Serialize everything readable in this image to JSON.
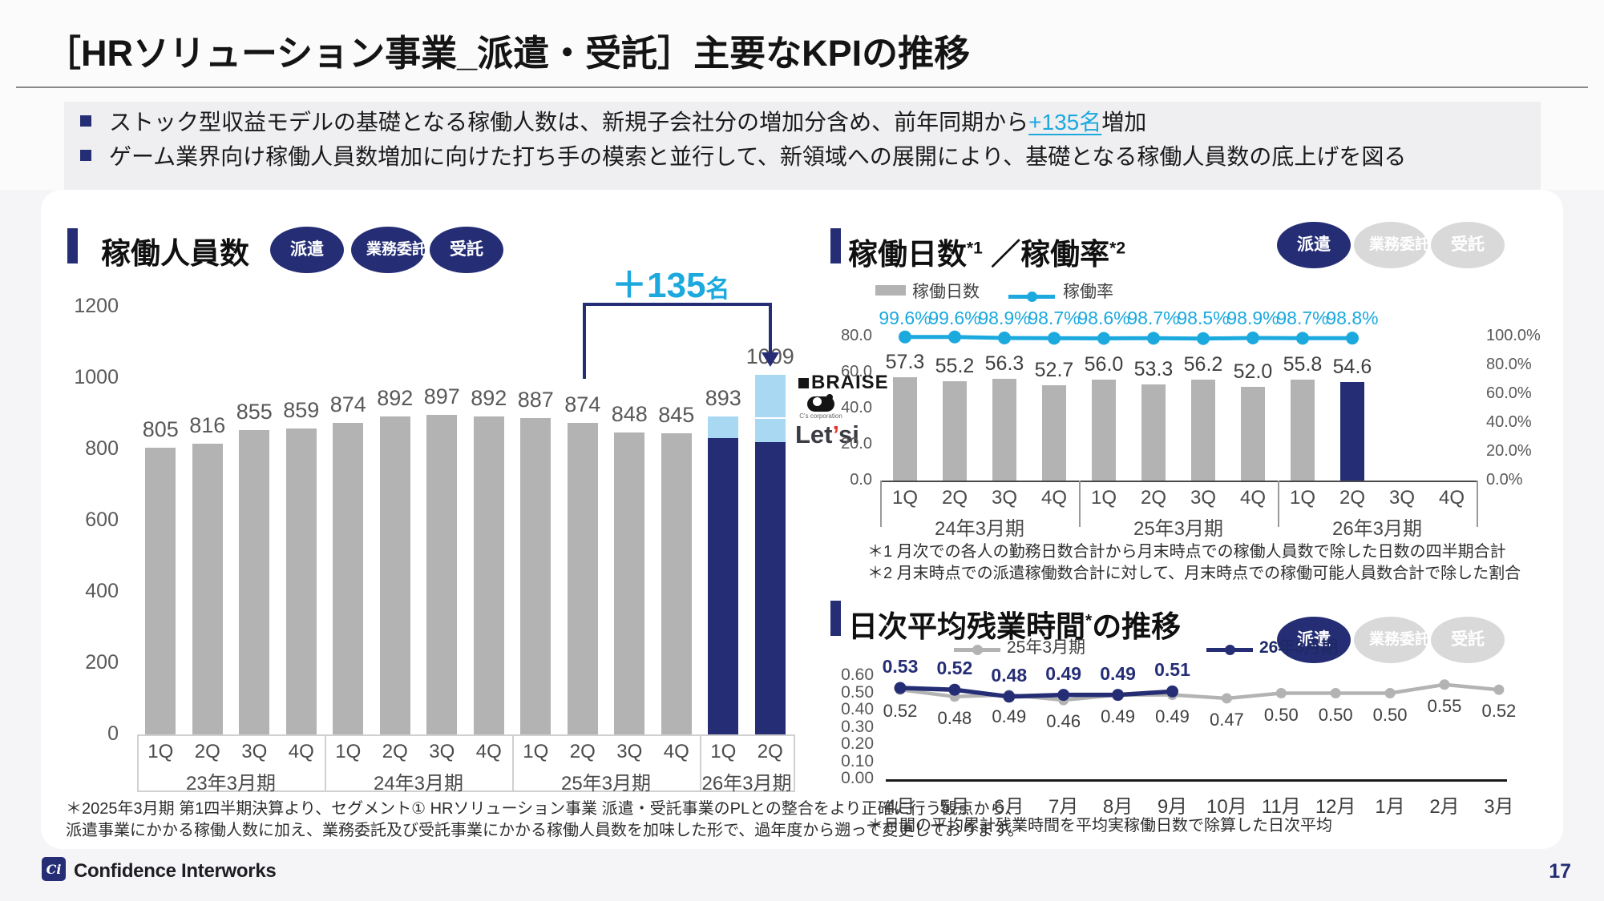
{
  "slide": {
    "title": "［HRソリューション事業_派遣・受託］主要なKPIの推移",
    "page_number": "17",
    "brand": "Confidence Interworks"
  },
  "bullets": [
    {
      "text_before": "ストック型収益モデルの基礎となる稼働人数は、新規子会社分の増加分含め、前年同期から",
      "highlight": "+135名",
      "text_after": "増加"
    },
    {
      "text_before": "ゲーム業界向け稼働人員数増加に向けた打ち手の模索と並行して、新領域への展開により、基礎となる稼働人員数の底上げを図る",
      "highlight": "",
      "text_after": ""
    }
  ],
  "colors": {
    "navy": "#252e75",
    "cyan": "#1ba9de",
    "light_blue": "#a9d9f2",
    "bar_gray": "#b3b3b3",
    "line_gray": "#b3b3b3",
    "badge_gray": "#d9d9d9",
    "accent_red": "#e8342c"
  },
  "panels": {
    "staff": {
      "title": "稼働人員数",
      "badges": [
        {
          "label": "派遣",
          "variant": "navy"
        },
        {
          "label": "業務委託",
          "variant": "navy"
        },
        {
          "label": "受託",
          "variant": "navy"
        }
      ],
      "annotation_value": "＋135",
      "annotation_unit": "名",
      "logos": {
        "braise": "BRAISE",
        "cs_caption": "C's corporation",
        "letsi_l": "Let",
        "letsi_apos": "’",
        "letsi_si": "si"
      },
      "footnote_line1": "＊2025年3月期 第1四半期決算より、セグメント① HRソリューション事業 派遣・受託事業のPLとの整合をより正確に行う観点から、",
      "footnote_line2": "派遣事業にかかる稼働人数に加え、業務委託及び受託事業にかかる稼働人員数を加味した形で、過年度から遡って変更しております。"
    },
    "days": {
      "title_1": "稼働日数",
      "title_sup1": "*1",
      "title_2": " ／稼働率",
      "title_sup2": "*2",
      "badges": [
        {
          "label": "派遣",
          "variant": "navy"
        },
        {
          "label": "業務委託",
          "variant": "gray"
        },
        {
          "label": "受託",
          "variant": "gray"
        }
      ],
      "legend": [
        {
          "label": "稼働日数",
          "swatch": "bar_gray"
        },
        {
          "label": "稼働率",
          "swatch": "line_cyan"
        }
      ],
      "footnote_1": "＊1 月次での各人の勤務日数合計から月末時点での稼働人員数で除した日数の四半期合計",
      "footnote_2": "＊2 月末時点での派遣稼働数合計に対して、月末時点での稼働可能人員数合計で除した割合"
    },
    "overtime": {
      "title_1": "日次平均残業時間",
      "title_sup": "*",
      "title_2": "の推移",
      "badges": [
        {
          "label": "派遣",
          "variant": "navy"
        },
        {
          "label": "業務委託",
          "variant": "gray"
        },
        {
          "label": "受託",
          "variant": "gray"
        }
      ],
      "legend": [
        {
          "label": "25年3月期",
          "swatch": "line_gray"
        },
        {
          "label": "26年3月期",
          "swatch": "line_navy"
        }
      ],
      "footnote": "＊月間の平均累計残業時間を平均実稼働日数で除算した日次平均"
    }
  },
  "chart_data": [
    {
      "id": "active-staff",
      "type": "bar",
      "title": "稼働人員数",
      "unit": "名",
      "categories": [
        "1Q",
        "2Q",
        "3Q",
        "4Q",
        "1Q",
        "2Q",
        "3Q",
        "4Q",
        "1Q",
        "2Q",
        "3Q",
        "4Q",
        "1Q",
        "2Q"
      ],
      "groups": [
        {
          "label": "23年3月期",
          "span": 4
        },
        {
          "label": "24年3月期",
          "span": 4
        },
        {
          "label": "25年3月期",
          "span": 4
        },
        {
          "label": "26年3月期",
          "span": 2
        }
      ],
      "values": [
        805,
        816,
        855,
        859,
        874,
        892,
        897,
        892,
        887,
        874,
        848,
        845,
        893,
        1009
      ],
      "segmented_bars": {
        "12": [
          {
            "value": 831,
            "color": "navy"
          },
          {
            "value": 62,
            "color": "light_blue"
          }
        ],
        "13": [
          {
            "value": 820,
            "color": "navy"
          },
          {
            "value": 65,
            "color": "light_blue"
          },
          {
            "value": 124,
            "color": "light_blue",
            "divider": true
          }
        ]
      },
      "yticks": [
        0,
        200,
        400,
        600,
        800,
        1000,
        1200
      ],
      "ylim": [
        0,
        1200
      ],
      "annotation": {
        "label": "＋135名",
        "from": "25年3月期 2Q",
        "to": "26年3月期 2Q"
      }
    },
    {
      "id": "working-days-rate",
      "type": "bar+line",
      "title": "稼働日数／稼働率",
      "categories": [
        "1Q",
        "2Q",
        "3Q",
        "4Q",
        "1Q",
        "2Q",
        "3Q",
        "4Q",
        "1Q",
        "2Q",
        "3Q",
        "4Q"
      ],
      "groups": [
        {
          "label": "24年3月期",
          "span": 4
        },
        {
          "label": "25年3月期",
          "span": 4
        },
        {
          "label": "26年3月期",
          "span": 4
        }
      ],
      "series": [
        {
          "name": "稼働日数",
          "type": "bar",
          "axis": "left",
          "values": [
            "57.3",
            "55.2",
            "56.3",
            "52.7",
            "56.0",
            "53.3",
            "56.2",
            "52.0",
            "55.8",
            "54.6"
          ],
          "highlight_last": true
        },
        {
          "name": "稼働率",
          "type": "line",
          "axis": "right",
          "values": [
            "99.6%",
            "99.6%",
            "98.9%",
            "98.7%",
            "98.6%",
            "98.7%",
            "98.5%",
            "98.9%",
            "98.7%",
            "98.8%"
          ]
        }
      ],
      "left_axis": {
        "ticks": [
          "80.0",
          "60.0",
          "40.0",
          "20.0",
          "0.0"
        ],
        "max": 80
      },
      "right_axis": {
        "ticks": [
          "100.0%",
          "80.0%",
          "60.0%",
          "40.0%",
          "20.0%",
          "0.0%"
        ],
        "max": 100
      }
    },
    {
      "id": "daily-overtime",
      "type": "line",
      "title": "日次平均残業時間の推移",
      "categories": [
        "4月",
        "5月",
        "6月",
        "7月",
        "8月",
        "9月",
        "10月",
        "11月",
        "12月",
        "1月",
        "2月",
        "3月"
      ],
      "series": [
        {
          "name": "25年3月期",
          "color_key": "line_gray",
          "values": [
            "0.52",
            "0.48",
            "0.49",
            "0.46",
            "0.49",
            "0.49",
            "0.47",
            "0.50",
            "0.50",
            "0.50",
            "0.55",
            "0.52"
          ]
        },
        {
          "name": "26年3月期",
          "color_key": "navy",
          "values": [
            "0.53",
            "0.52",
            "0.48",
            "0.49",
            "0.49",
            "0.51"
          ]
        }
      ],
      "yticks": [
        "0.60",
        "0.50",
        "0.40",
        "0.30",
        "0.20",
        "0.10",
        "0.00"
      ],
      "ylim": [
        0,
        0.6
      ]
    }
  ]
}
